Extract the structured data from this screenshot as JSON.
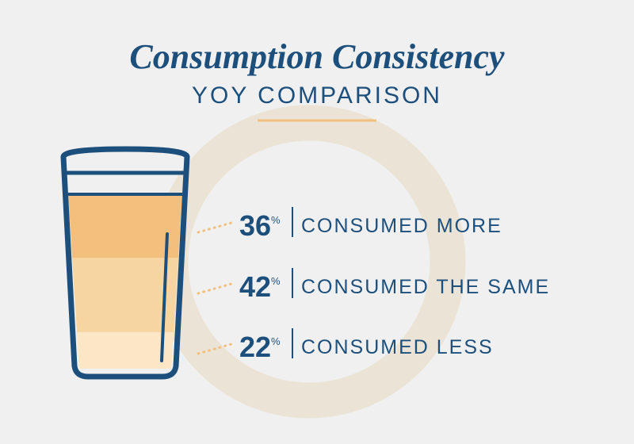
{
  "chart_data": {
    "type": "bar",
    "title": "Consumption Consistency",
    "subtitle": "YOY COMPARISON",
    "categories": [
      "CONSUMED MORE",
      "CONSUMED THE SAME",
      "CONSUMED LESS"
    ],
    "values": [
      36,
      42,
      22
    ],
    "unit": "%",
    "colors": [
      "#f2c07c",
      "#f7d5a1",
      "#fbe7c6"
    ]
  }
}
